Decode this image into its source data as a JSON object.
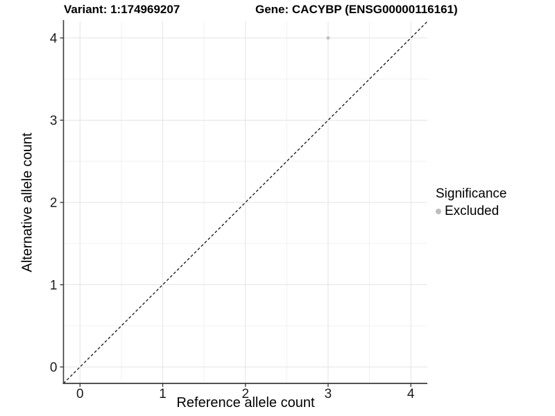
{
  "titles": {
    "variant": "Variant: 1:174969207",
    "gene": "Gene: CACYBP (ENSG00000116161)"
  },
  "legend": {
    "title": "Significance",
    "items": [
      {
        "label": "Excluded",
        "color": "#bdbdbd"
      }
    ]
  },
  "chart_data": {
    "type": "scatter",
    "title": "Variant: 1:174969207 — Gene: CACYBP (ENSG00000116161)",
    "xlabel": "Reference allele count",
    "ylabel": "Alternative allele count",
    "xlim": [
      -0.2,
      4.2
    ],
    "ylim": [
      -0.2,
      4.2
    ],
    "x_ticks": [
      0,
      1,
      2,
      3,
      4
    ],
    "y_ticks": [
      0,
      1,
      2,
      3,
      4
    ],
    "minor_ticks_x": [
      0.5,
      1.5,
      2.5,
      3.5
    ],
    "minor_ticks_y": [
      0.5,
      1.5,
      2.5,
      3.5
    ],
    "grid": "major+minor",
    "legend_position": "right",
    "series": [
      {
        "name": "Excluded",
        "type": "scatter",
        "color": "#bdbdbd",
        "points": [
          [
            3,
            4
          ]
        ]
      }
    ],
    "reference_line": {
      "kind": "identity",
      "slope": 1,
      "intercept": 0,
      "style": "dashed",
      "color": "#000000"
    }
  },
  "colors": {
    "background": "#ffffff",
    "grid_major": "#e3e3e3",
    "grid_minor": "#f0f0f0",
    "axis": "#3a3a3a",
    "tick_mark": "#333333",
    "tick_text": "#1a1a1a",
    "point": "#bdbdbd",
    "legend_point": "#b5b5b5"
  }
}
